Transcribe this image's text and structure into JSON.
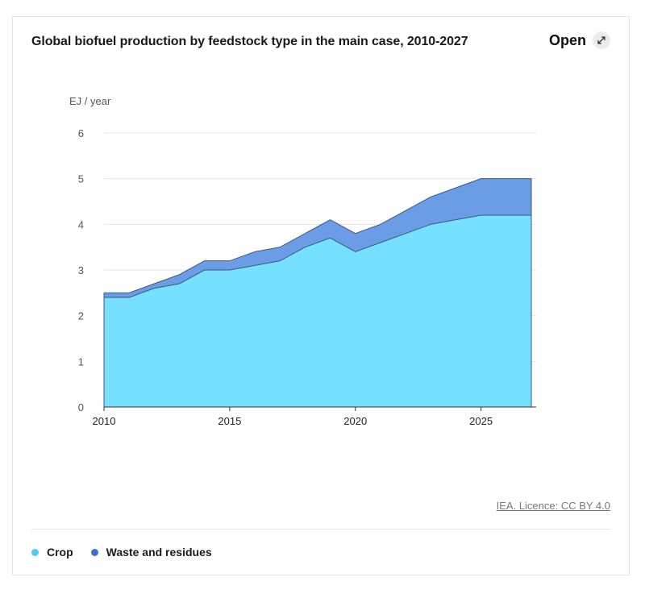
{
  "title": "Global biofuel production by feedstock type in the main case, 2010-2027",
  "open_label": "Open",
  "licence": "IEA. Licence: CC BY 4.0",
  "colors": {
    "crop": "#75e0ff",
    "waste": "#6b9ce6",
    "crop_dot": "#4fcdf5",
    "waste_dot": "#3a6fd0",
    "line": "#3f5878"
  },
  "legend": [
    {
      "label": "Crop",
      "color": "#4fcdf5"
    },
    {
      "label": "Waste and residues",
      "color": "#3a6fd0"
    }
  ],
  "chart_data": {
    "type": "area",
    "stacked": true,
    "ylabel": "EJ / year",
    "x": [
      2010,
      2011,
      2012,
      2013,
      2014,
      2015,
      2016,
      2017,
      2018,
      2019,
      2020,
      2021,
      2022,
      2023,
      2024,
      2025,
      2026,
      2027
    ],
    "xlim": [
      2010,
      2027
    ],
    "ylim": [
      0,
      6
    ],
    "xticks": [
      2010,
      2015,
      2020,
      2025
    ],
    "yticks": [
      0,
      1,
      2,
      3,
      4,
      5,
      6
    ],
    "grid": true,
    "legend_position": "bottom-left",
    "series": [
      {
        "name": "Crop",
        "values": [
          2.4,
          2.4,
          2.6,
          2.7,
          3.0,
          3.0,
          3.1,
          3.2,
          3.5,
          3.7,
          3.4,
          3.6,
          3.8,
          4.0,
          4.1,
          4.2,
          4.2,
          4.2
        ]
      },
      {
        "name": "Waste and residues",
        "values": [
          0.1,
          0.1,
          0.1,
          0.2,
          0.2,
          0.2,
          0.3,
          0.3,
          0.3,
          0.4,
          0.4,
          0.4,
          0.5,
          0.6,
          0.7,
          0.8,
          0.8,
          0.8
        ]
      }
    ]
  }
}
